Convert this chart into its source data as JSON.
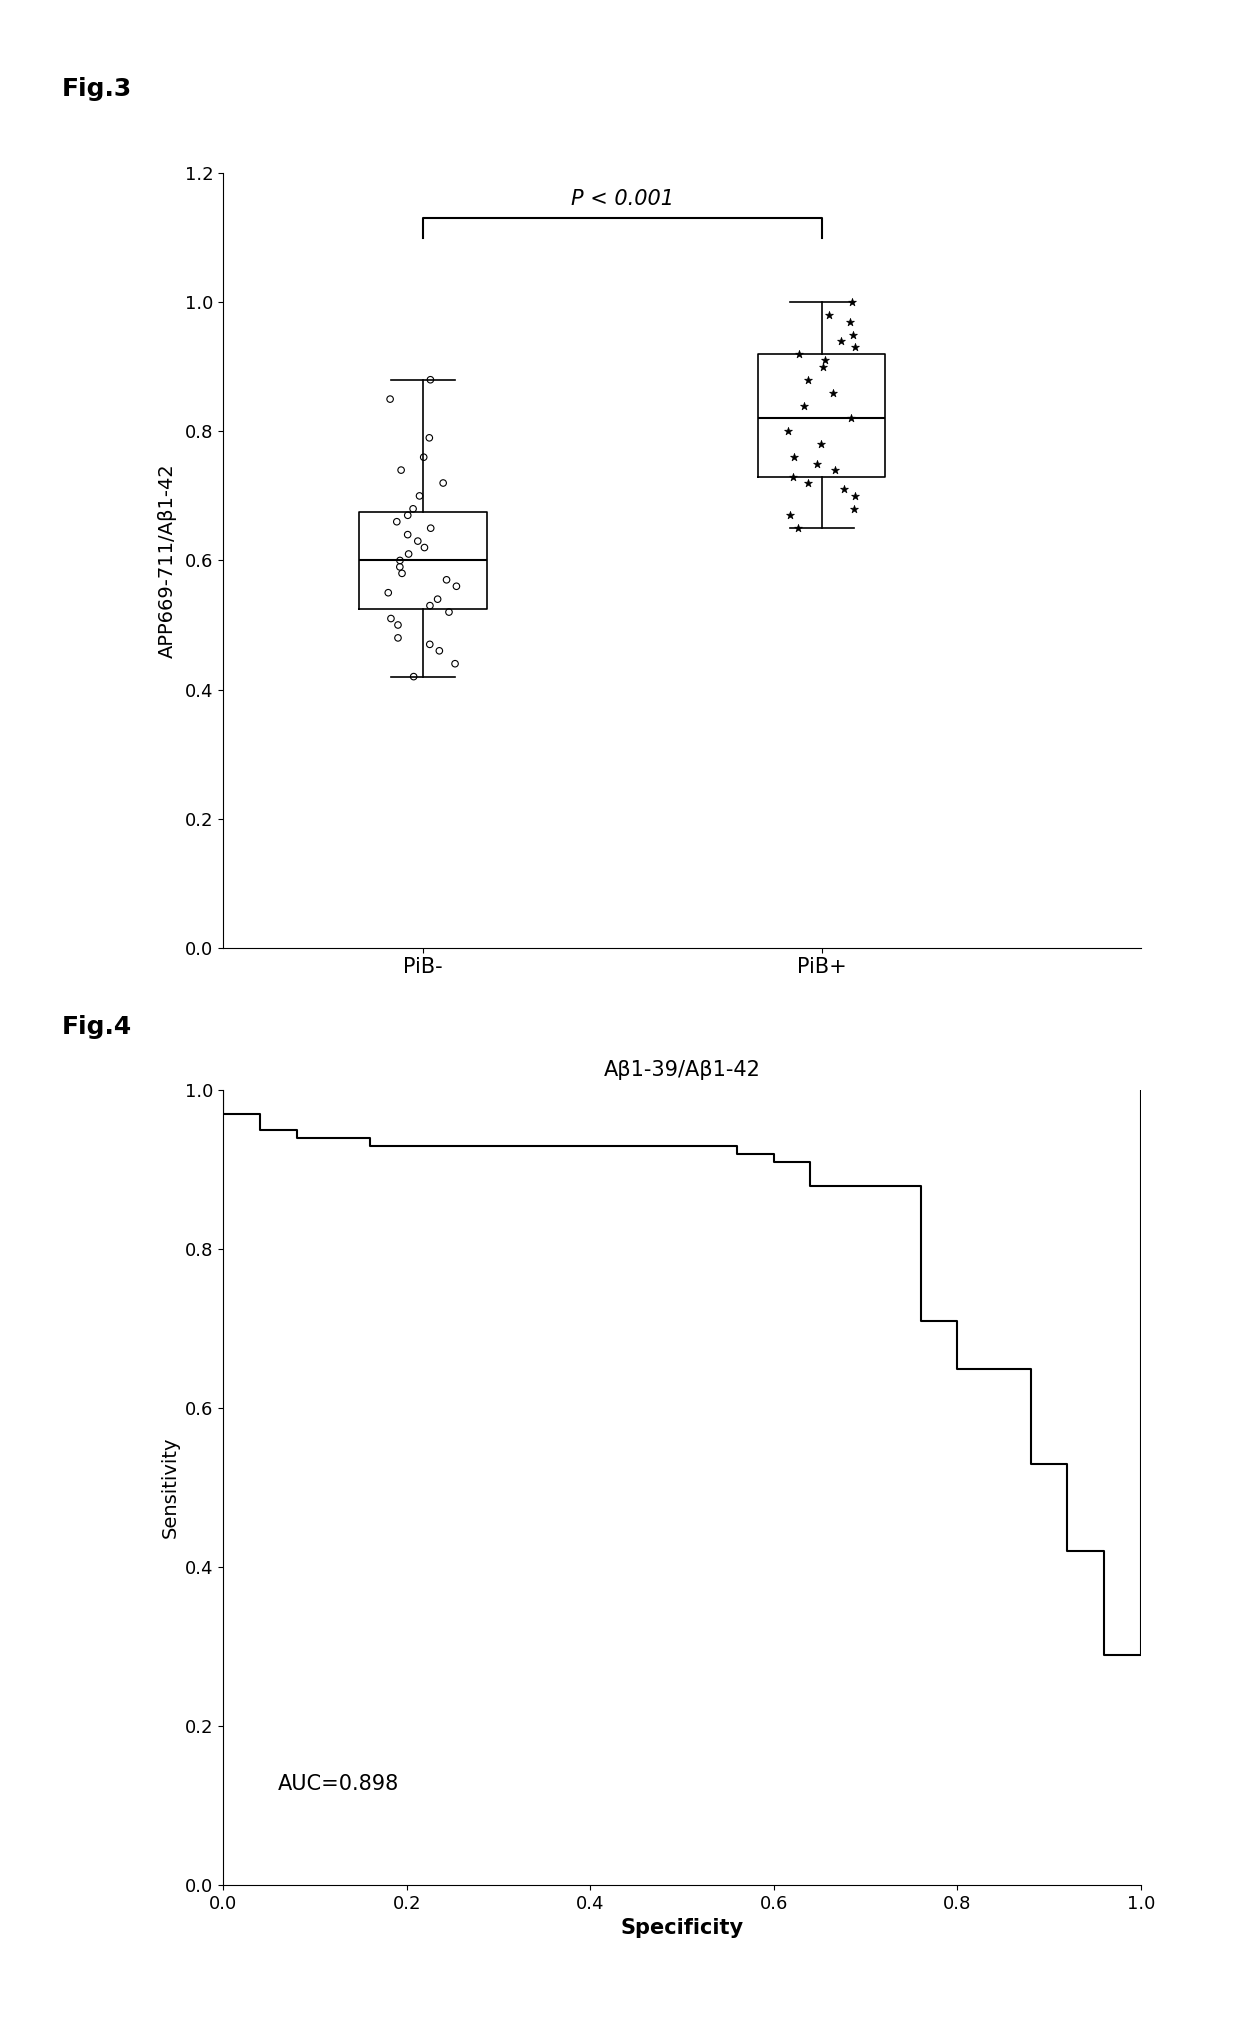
{
  "fig3_label": "Fig.3",
  "fig4_label": "Fig.4",
  "ylabel_fig3": "APP669-711/Aβ1-42",
  "xlabel_fig3_pib_neg": "PiB-",
  "xlabel_fig3_pib_pos": "PiB+",
  "pvalue_text": "P < 0.001",
  "ylim_fig3": [
    0,
    1.2
  ],
  "yticks_fig3": [
    0,
    0.2,
    0.4,
    0.6,
    0.8,
    1.0,
    1.2
  ],
  "pib_neg_data": [
    0.42,
    0.44,
    0.46,
    0.47,
    0.48,
    0.5,
    0.51,
    0.52,
    0.53,
    0.54,
    0.55,
    0.56,
    0.57,
    0.58,
    0.59,
    0.6,
    0.61,
    0.62,
    0.63,
    0.64,
    0.65,
    0.66,
    0.67,
    0.68,
    0.7,
    0.72,
    0.74,
    0.76,
    0.79,
    0.85,
    0.88
  ],
  "pib_pos_data": [
    0.65,
    0.67,
    0.68,
    0.7,
    0.71,
    0.72,
    0.73,
    0.74,
    0.75,
    0.76,
    0.78,
    0.8,
    0.82,
    0.84,
    0.86,
    0.88,
    0.9,
    0.91,
    0.92,
    0.93,
    0.94,
    0.95,
    0.97,
    0.98,
    1.0
  ],
  "roc_specificity": [
    0.0,
    0.0,
    0.04,
    0.04,
    0.08,
    0.08,
    0.12,
    0.12,
    0.16,
    0.16,
    0.2,
    0.2,
    0.24,
    0.24,
    0.28,
    0.28,
    0.32,
    0.32,
    0.36,
    0.36,
    0.4,
    0.4,
    0.44,
    0.44,
    0.48,
    0.48,
    0.48,
    0.52,
    0.52,
    0.52,
    0.56,
    0.56,
    0.6,
    0.6,
    0.64,
    0.64,
    0.68,
    0.68,
    0.72,
    0.72,
    0.76,
    0.76,
    0.8,
    0.8,
    0.84,
    0.84,
    0.88,
    0.88,
    0.88,
    0.92,
    0.92,
    0.96,
    0.96,
    1.0,
    1.0
  ],
  "roc_sensitivity": [
    1.0,
    0.97,
    0.97,
    0.95,
    0.95,
    0.94,
    0.94,
    0.94,
    0.94,
    0.93,
    0.93,
    0.93,
    0.93,
    0.93,
    0.93,
    0.93,
    0.93,
    0.93,
    0.93,
    0.93,
    0.93,
    0.93,
    0.93,
    0.93,
    0.93,
    0.93,
    0.93,
    0.93,
    0.93,
    0.93,
    0.93,
    0.92,
    0.92,
    0.91,
    0.91,
    0.88,
    0.88,
    0.88,
    0.88,
    0.88,
    0.88,
    0.71,
    0.71,
    0.65,
    0.65,
    0.65,
    0.65,
    0.53,
    0.53,
    0.53,
    0.42,
    0.42,
    0.29,
    0.29,
    1.0
  ],
  "auc_text": "AUC=0.898",
  "fig4_xlabel": "Specificity",
  "fig4_ylabel": "Sensitivity",
  "fig4_title_text": "Aβ1-39/Aβ1-42",
  "background_color": "#ffffff",
  "line_color": "#000000"
}
